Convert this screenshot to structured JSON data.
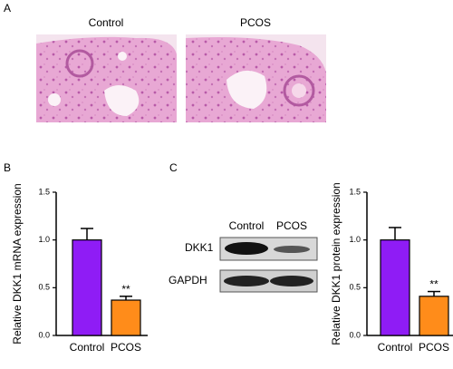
{
  "panels": {
    "a": "A",
    "b": "B",
    "c": "C"
  },
  "histology": {
    "labels": [
      "Control",
      "PCOS"
    ]
  },
  "blot": {
    "lanes": [
      "Control",
      "PCOS"
    ],
    "rows": [
      "DKK1",
      "GAPDH"
    ]
  },
  "chart_data": [
    {
      "type": "bar",
      "ylabel": "Relative DKK1 mRNA expression",
      "categories": [
        "Control",
        "PCOS"
      ],
      "values": [
        1.0,
        0.37
      ],
      "errors": [
        0.12,
        0.04
      ],
      "colors": [
        "#8f1cf5",
        "#ff8c1a"
      ],
      "annotation": "**",
      "ylim": [
        0,
        1.5
      ],
      "yticks": [
        {
          "value": 0,
          "label": "0.0"
        },
        0.5,
        {
          "value": 1,
          "label": "1.0"
        },
        1.5
      ]
    },
    {
      "type": "bar",
      "ylabel": "Relative DKK1 protein expression",
      "categories": [
        "Control",
        "PCOS"
      ],
      "values": [
        1.0,
        0.41
      ],
      "errors": [
        0.13,
        0.05
      ],
      "colors": [
        "#8f1cf5",
        "#ff8c1a"
      ],
      "annotation": "**",
      "ylim": [
        0,
        1.5
      ],
      "yticks": [
        {
          "value": 0,
          "label": "0.0"
        },
        0.5,
        {
          "value": 1,
          "label": "1.0"
        },
        1.5
      ]
    }
  ]
}
